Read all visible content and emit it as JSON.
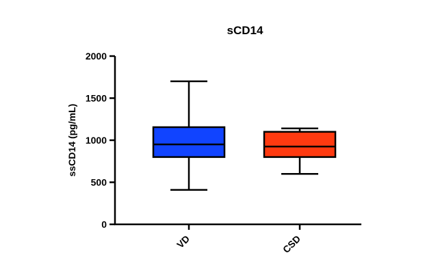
{
  "chart_data": {
    "type": "box",
    "title": "sCD14",
    "xlabel": "",
    "ylabel": "ssCD14 (pg/mL)",
    "ylim": [
      0,
      2000
    ],
    "yticks": [
      0,
      500,
      1000,
      1500,
      2000
    ],
    "grid": false,
    "legend": "none",
    "categories": [
      "VD",
      "CSD"
    ],
    "boxes": [
      {
        "category": "VD",
        "min": 410,
        "q1": 800,
        "median": 950,
        "q3": 1155,
        "max": 1700,
        "color": "#1144ff"
      },
      {
        "category": "CSD",
        "min": 600,
        "q1": 800,
        "median": 925,
        "q3": 1100,
        "max": 1140,
        "color": "#ff3a10"
      }
    ]
  }
}
